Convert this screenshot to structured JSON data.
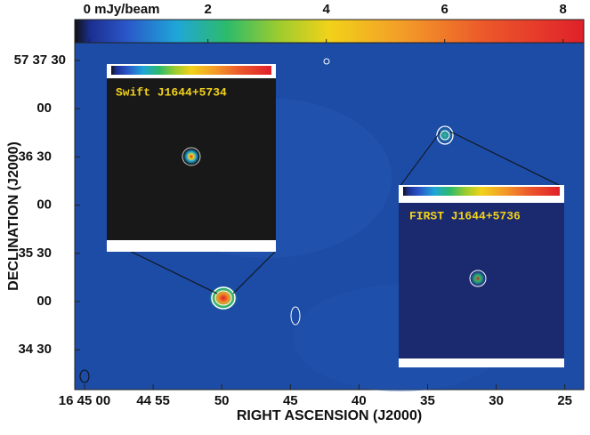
{
  "chart_data": {
    "type": "image",
    "xlabel": "RIGHT ASCENSION (J2000)",
    "ylabel": "DECLINATION (J2000)",
    "xticks": [
      "16 45 00",
      "44 55",
      "50",
      "45",
      "40",
      "35",
      "30",
      "25"
    ],
    "yticks": [
      "57 37 30",
      "00",
      "36 30",
      "00",
      "35 30",
      "00",
      "34 30"
    ],
    "colorbar": {
      "lim": [
        -0.25,
        8.35
      ],
      "ticks": [
        {
          "value": 0,
          "label": "0 mJy/beam"
        },
        2,
        4,
        6,
        8
      ]
    },
    "insets": [
      {
        "title": "Swift J1644+5734"
      },
      {
        "title": "FIRST J1644+5736"
      }
    ]
  }
}
